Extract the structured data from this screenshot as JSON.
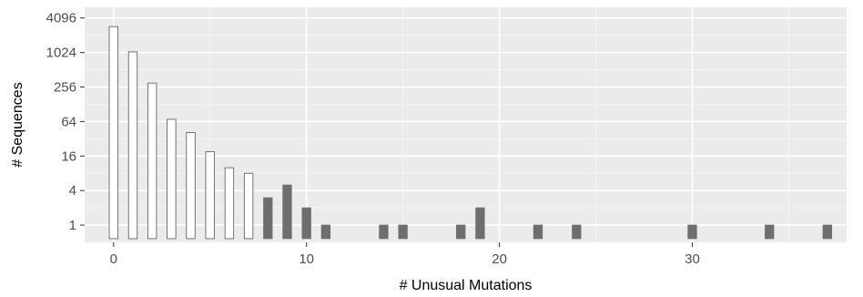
{
  "chart_data": {
    "type": "bar",
    "xlabel": "# Unusual Mutations",
    "ylabel": "# Sequences",
    "y_scale": "log2",
    "ylim": [
      0.5,
      4096
    ],
    "xlim": [
      -1.5,
      38
    ],
    "x_ticks": [
      "0",
      "10",
      "20",
      "30"
    ],
    "y_ticks": [
      "1",
      "4",
      "16",
      "64",
      "256",
      "1024",
      "4096"
    ],
    "grid": true,
    "legend": "none",
    "series": [
      {
        "fill": "#ffffff",
        "stroke": "#555555",
        "points": [
          {
            "x": 0,
            "y": 2900
          },
          {
            "x": 1,
            "y": 1050
          },
          {
            "x": 2,
            "y": 300
          },
          {
            "x": 3,
            "y": 70
          },
          {
            "x": 4,
            "y": 41
          },
          {
            "x": 5,
            "y": 19
          },
          {
            "x": 6,
            "y": 10
          },
          {
            "x": 7,
            "y": 8
          }
        ]
      },
      {
        "fill": "#6e6e6e",
        "stroke": "#6e6e6e",
        "points": [
          {
            "x": 8,
            "y": 3
          },
          {
            "x": 9,
            "y": 5
          },
          {
            "x": 10,
            "y": 2
          },
          {
            "x": 11,
            "y": 1
          },
          {
            "x": 14,
            "y": 1
          },
          {
            "x": 15,
            "y": 1
          },
          {
            "x": 18,
            "y": 1
          },
          {
            "x": 19,
            "y": 2
          },
          {
            "x": 22,
            "y": 1
          },
          {
            "x": 24,
            "y": 1
          },
          {
            "x": 30,
            "y": 1
          },
          {
            "x": 34,
            "y": 1
          },
          {
            "x": 37,
            "y": 1
          }
        ]
      }
    ],
    "colors": {
      "panel_background": "#ebebeb",
      "grid_major": "#ffffff",
      "tick_label": "#4d4d4d"
    }
  }
}
